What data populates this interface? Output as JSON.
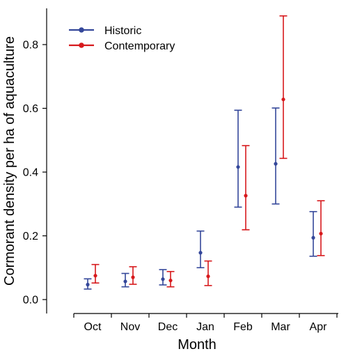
{
  "chart_data": {
    "type": "scatter",
    "xlabel": "Month",
    "ylabel": "Cormorant density per ha of aquaculture",
    "categories": [
      "Oct",
      "Nov",
      "Dec",
      "Jan",
      "Feb",
      "Mar",
      "Apr"
    ],
    "ylim": [
      -0.03,
      0.92
    ],
    "yticks": [
      0.0,
      0.2,
      0.4,
      0.6,
      0.8
    ],
    "ytick_labels": [
      "0.0",
      "0.2",
      "0.4",
      "0.6",
      "0.8"
    ],
    "grid": false,
    "legend_position": "top-left",
    "series": [
      {
        "name": "Historic",
        "color": "#34479a",
        "values": [
          0.047,
          0.057,
          0.064,
          0.147,
          0.416,
          0.426,
          0.194
        ],
        "lower": [
          0.033,
          0.04,
          0.046,
          0.1,
          0.29,
          0.3,
          0.136
        ],
        "upper": [
          0.065,
          0.082,
          0.094,
          0.215,
          0.594,
          0.601,
          0.276
        ]
      },
      {
        "name": "Contemporary",
        "color": "#d7191c",
        "values": [
          0.075,
          0.07,
          0.06,
          0.073,
          0.326,
          0.628,
          0.207
        ],
        "lower": [
          0.052,
          0.048,
          0.04,
          0.044,
          0.219,
          0.443,
          0.138
        ],
        "upper": [
          0.11,
          0.103,
          0.088,
          0.121,
          0.483,
          0.89,
          0.31
        ]
      }
    ]
  }
}
